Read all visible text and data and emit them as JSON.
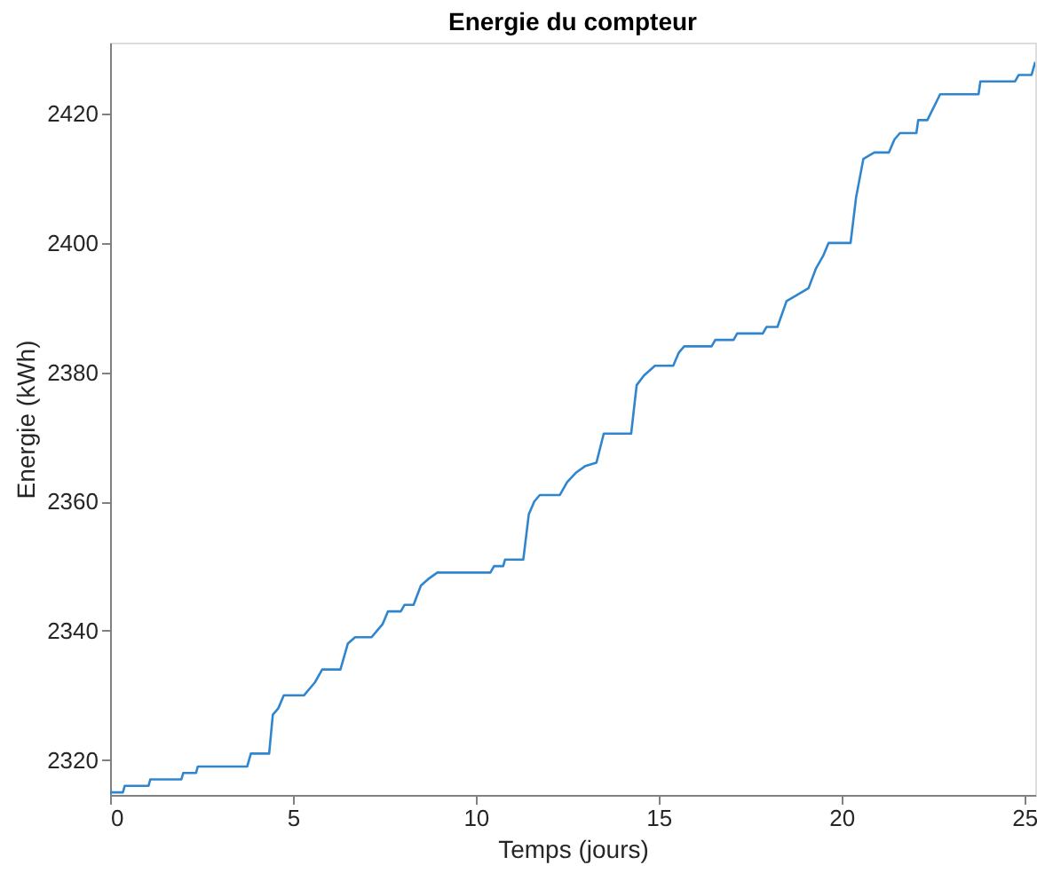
{
  "chart_data": {
    "type": "line",
    "title": "Energie du compteur",
    "xlabel": "Temps (jours)",
    "ylabel": "Energie (kWh)",
    "x": [
      0,
      0.35,
      0.4,
      1.05,
      1.1,
      1.95,
      2.0,
      2.35,
      2.4,
      3.75,
      3.85,
      4.35,
      4.45,
      4.6,
      4.75,
      5.3,
      5.6,
      5.8,
      6.3,
      6.5,
      6.7,
      7.15,
      7.3,
      7.45,
      7.6,
      7.95,
      8.05,
      8.3,
      8.5,
      8.7,
      8.95,
      10.4,
      10.5,
      10.75,
      10.8,
      11.3,
      11.45,
      11.6,
      11.75,
      12.3,
      12.5,
      12.75,
      13.0,
      13.3,
      13.5,
      14.25,
      14.4,
      14.6,
      14.9,
      15.4,
      15.55,
      15.7,
      16.45,
      16.55,
      17.05,
      17.15,
      17.85,
      17.95,
      18.25,
      18.5,
      18.8,
      19.1,
      19.3,
      19.5,
      19.65,
      20.25,
      20.4,
      20.6,
      20.9,
      21.3,
      21.45,
      21.6,
      22.05,
      22.1,
      22.35,
      22.7,
      23.75,
      23.8,
      24.75,
      24.85,
      25.2,
      25.3
    ],
    "series": [
      {
        "color": "#2f86cf",
        "values": [
          2315,
          2315,
          2316,
          2316,
          2317,
          2317,
          2318,
          2318,
          2319,
          2319,
          2321,
          2321,
          2327,
          2328,
          2330,
          2330,
          2332,
          2334,
          2334,
          2338,
          2339,
          2339,
          2340,
          2341,
          2343,
          2343,
          2344,
          2344,
          2347,
          2348,
          2349,
          2349,
          2350,
          2350,
          2351,
          2351,
          2358,
          2360,
          2361,
          2361,
          2363,
          2364.5,
          2365.5,
          2366,
          2370.5,
          2370.5,
          2378,
          2379.5,
          2381,
          2381,
          2383,
          2384,
          2384,
          2385,
          2385,
          2386,
          2386,
          2387,
          2387,
          2391,
          2392,
          2393,
          2396,
          2398,
          2400,
          2400,
          2407,
          2413,
          2414,
          2414,
          2416,
          2417,
          2417,
          2419,
          2419,
          2423,
          2423,
          2425,
          2425,
          2426,
          2426,
          2428
        ]
      }
    ],
    "xlim": [
      0,
      25.3
    ],
    "xticks": [
      0,
      5,
      10,
      15,
      20,
      25
    ],
    "ylim": [
      2314.6,
      2431
    ],
    "yticks": [
      2320,
      2340,
      2360,
      2380,
      2400,
      2420
    ],
    "grid": false,
    "legend": false,
    "marker": "none",
    "line_style": "solid"
  }
}
